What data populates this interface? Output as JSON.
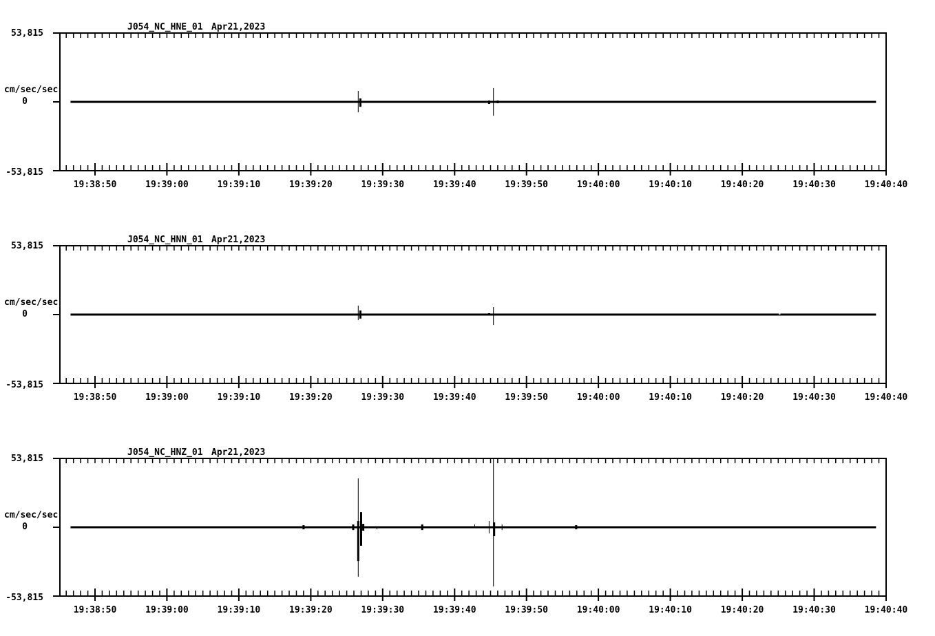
{
  "page": {
    "background_color": "#ffffff",
    "foreground_color": "#000000",
    "description_visible_text_only": "Three stacked seismogram acceleration traces"
  },
  "y_axis": {
    "top_label": "53,815",
    "zero_label": "0",
    "bottom_label": "-53,815",
    "units_label": "cm/sec/sec"
  },
  "x_axis": {
    "tick_labels": [
      "19:38:50",
      "19:39:00",
      "19:39:10",
      "19:39:20",
      "19:39:30",
      "19:39:40",
      "19:39:50",
      "19:40:00",
      "19:40:10",
      "19:40:20",
      "19:40:30",
      "19:40:40"
    ],
    "major_interval_sec": 10,
    "minor_interval_sec": 1
  },
  "chart_data": [
    {
      "type": "line",
      "title": "J054_NC_HNE_01",
      "date": "Apr21,2023",
      "ylabel": "cm/sec/sec",
      "ylim": [
        -53.815,
        53.815
      ],
      "ytick_labels": [
        "53,815",
        "0",
        "-53,815"
      ],
      "x_window": [
        "19:38:45",
        "19:40:40"
      ],
      "xticks": [
        "19:38:50",
        "19:39:00",
        "19:39:10",
        "19:39:20",
        "19:39:30",
        "19:39:40",
        "19:39:50",
        "19:40:00",
        "19:40:10",
        "19:40:20",
        "19:40:30",
        "19:40:40"
      ],
      "baseline_value": 0,
      "trace_span_sec_after_1938": [
        46.6,
        158.6
      ],
      "spikes": [
        {
          "t": 86.3,
          "time": "19:39:26.3",
          "up": 0.8,
          "down": 0.8,
          "w": 3
        },
        {
          "t": 86.6,
          "time": "19:39:26.6",
          "up": 8.6,
          "down": 8.1,
          "w": 1
        },
        {
          "t": 86.9,
          "time": "19:39:26.9",
          "up": 2.7,
          "down": 3.8,
          "w": 3
        },
        {
          "t": 104.8,
          "time": "19:39:44.8",
          "up": 1.1,
          "down": 1.6,
          "w": 3
        },
        {
          "t": 105.4,
          "time": "19:39:45.4",
          "up": 10.8,
          "down": 10.8,
          "w": 1
        },
        {
          "t": 106.0,
          "time": "19:39:46.0",
          "up": 1.1,
          "down": 1.1,
          "w": 3
        }
      ],
      "trace_gaps": []
    },
    {
      "type": "line",
      "title": "J054_NC_HNN_01",
      "date": "Apr21,2023",
      "ylabel": "cm/sec/sec",
      "ylim": [
        -53.815,
        53.815
      ],
      "ytick_labels": [
        "53,815",
        "0",
        "-53,815"
      ],
      "x_window": [
        "19:38:45",
        "19:40:40"
      ],
      "xticks": [
        "19:38:50",
        "19:39:00",
        "19:39:10",
        "19:39:20",
        "19:39:30",
        "19:39:40",
        "19:39:50",
        "19:40:00",
        "19:40:10",
        "19:40:20",
        "19:40:30",
        "19:40:40"
      ],
      "baseline_value": 0,
      "trace_span_sec_after_1938": [
        46.6,
        158.6
      ],
      "spikes": [
        {
          "t": 86.6,
          "time": "19:39:26.6",
          "up": 7.0,
          "down": 4.3,
          "w": 1
        },
        {
          "t": 86.9,
          "time": "19:39:26.9",
          "up": 3.2,
          "down": 3.2,
          "w": 3
        },
        {
          "t": 104.8,
          "time": "19:39:44.8",
          "up": 1.1,
          "down": 0.5,
          "w": 3
        },
        {
          "t": 105.4,
          "time": "19:39:45.4",
          "up": 5.9,
          "down": 8.1,
          "w": 1
        }
      ],
      "trace_gaps": [
        {
          "t": 145.2,
          "time": "19:40:25.2"
        }
      ]
    },
    {
      "type": "line",
      "title": "J054_NC_HNZ_01",
      "date": "Apr21,2023",
      "ylabel": "cm/sec/sec",
      "ylim": [
        -53.815,
        53.815
      ],
      "ytick_labels": [
        "53,815",
        "0",
        "-53,815"
      ],
      "x_window": [
        "19:38:45",
        "19:40:40"
      ],
      "xticks": [
        "19:38:50",
        "19:39:00",
        "19:39:10",
        "19:39:20",
        "19:39:30",
        "19:39:40",
        "19:39:50",
        "19:40:00",
        "19:40:10",
        "19:40:20",
        "19:40:30",
        "19:40:40"
      ],
      "baseline_value": 0,
      "trace_span_sec_after_1938": [
        46.6,
        158.6
      ],
      "spikes": [
        {
          "t": 79.0,
          "time": "19:39:19.0",
          "up": 1.6,
          "down": 1.6,
          "w": 3
        },
        {
          "t": 85.9,
          "time": "19:39:25.9",
          "up": 2.2,
          "down": 2.2,
          "w": 3
        },
        {
          "t": 86.6,
          "time": "19:39:26.6",
          "up": 38.2,
          "down": 38.7,
          "w": 1
        },
        {
          "t": 86.6,
          "time": "19:39:26.6",
          "up": 4.8,
          "down": 26.4,
          "w": 3
        },
        {
          "t": 87.0,
          "time": "19:39:27.0",
          "up": 11.8,
          "down": 14.5,
          "w": 3
        },
        {
          "t": 87.3,
          "time": "19:39:27.3",
          "up": 2.7,
          "down": 2.7,
          "w": 3
        },
        {
          "t": 89.2,
          "time": "19:39:29.2",
          "up": 0.0,
          "down": 1.6,
          "w": 1
        },
        {
          "t": 95.5,
          "time": "19:39:35.5",
          "up": 2.2,
          "down": 2.2,
          "w": 3
        },
        {
          "t": 102.8,
          "time": "19:39:42.8",
          "up": 2.2,
          "down": 0.5,
          "w": 1
        },
        {
          "t": 104.1,
          "time": "19:39:44.1",
          "up": 0.8,
          "down": 0.8,
          "w": 1
        },
        {
          "t": 104.8,
          "time": "19:39:44.8",
          "up": 4.8,
          "down": 4.8,
          "w": 1
        },
        {
          "t": 105.4,
          "time": "19:39:45.4",
          "up": 53.8,
          "down": 46.3,
          "w": 1
        },
        {
          "t": 105.5,
          "time": "19:39:45.5",
          "up": 3.8,
          "down": 7.0,
          "w": 3
        },
        {
          "t": 106.6,
          "time": "19:39:46.6",
          "up": 2.2,
          "down": 2.2,
          "w": 1
        },
        {
          "t": 116.9,
          "time": "19:39:56.9",
          "up": 1.6,
          "down": 1.6,
          "w": 3
        }
      ],
      "trace_gaps": []
    }
  ]
}
